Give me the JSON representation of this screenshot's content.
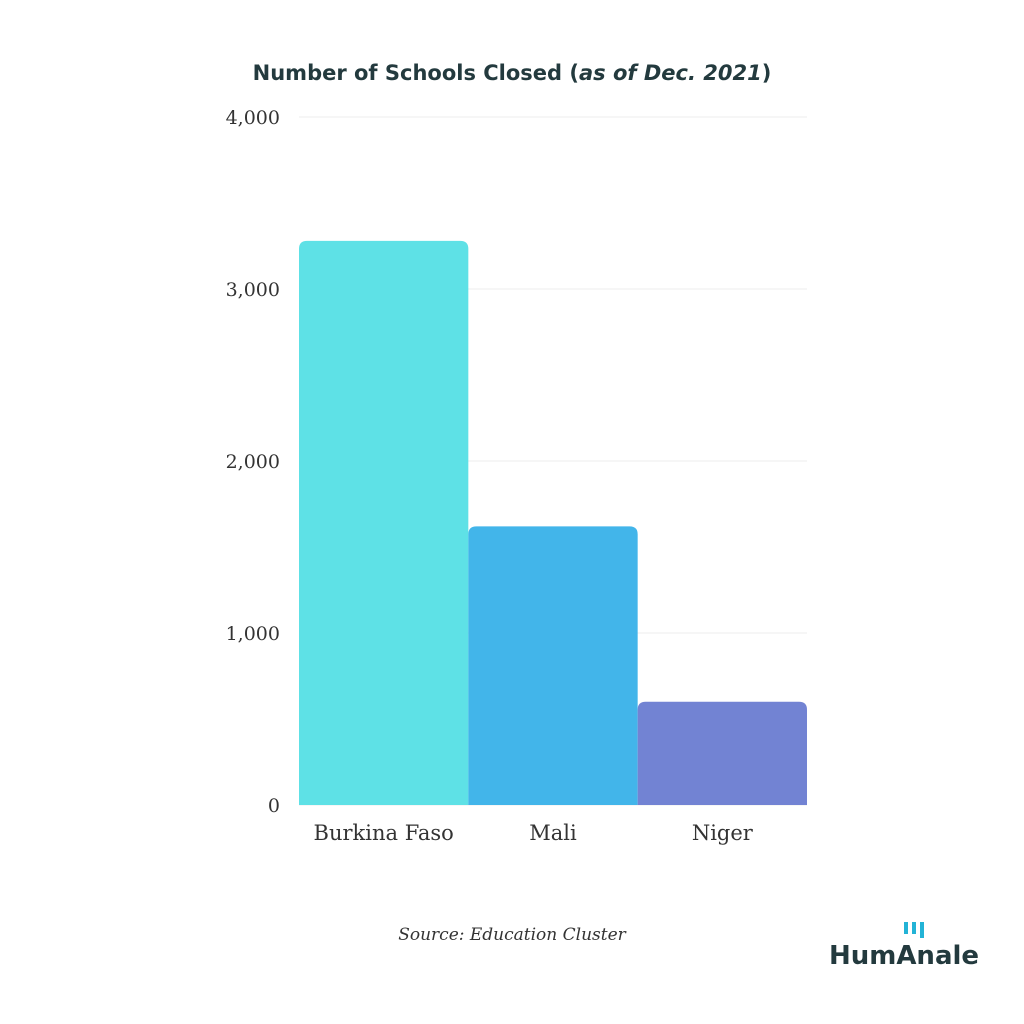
{
  "chart_data": {
    "type": "bar",
    "title_parts": [
      "Number of Schools Closed (",
      "as of Dec. 2021",
      ")"
    ],
    "categories": [
      "Burkina Faso",
      "Mali",
      "Niger"
    ],
    "values": [
      3280,
      1620,
      600
    ],
    "colors": [
      "#5ee1e6",
      "#42b5ea",
      "#7283d3"
    ],
    "ylim": [
      0,
      4000
    ],
    "yticks": [
      0,
      {
        "value": 1000,
        "label": "1,000"
      },
      {
        "value": 2000,
        "label": "2,000"
      },
      {
        "value": 3000,
        "label": "3,000"
      },
      {
        "value": 4000,
        "label": "4,000"
      }
    ],
    "grid": true,
    "source": "Source: Education Cluster",
    "logo": "HumAnale"
  }
}
